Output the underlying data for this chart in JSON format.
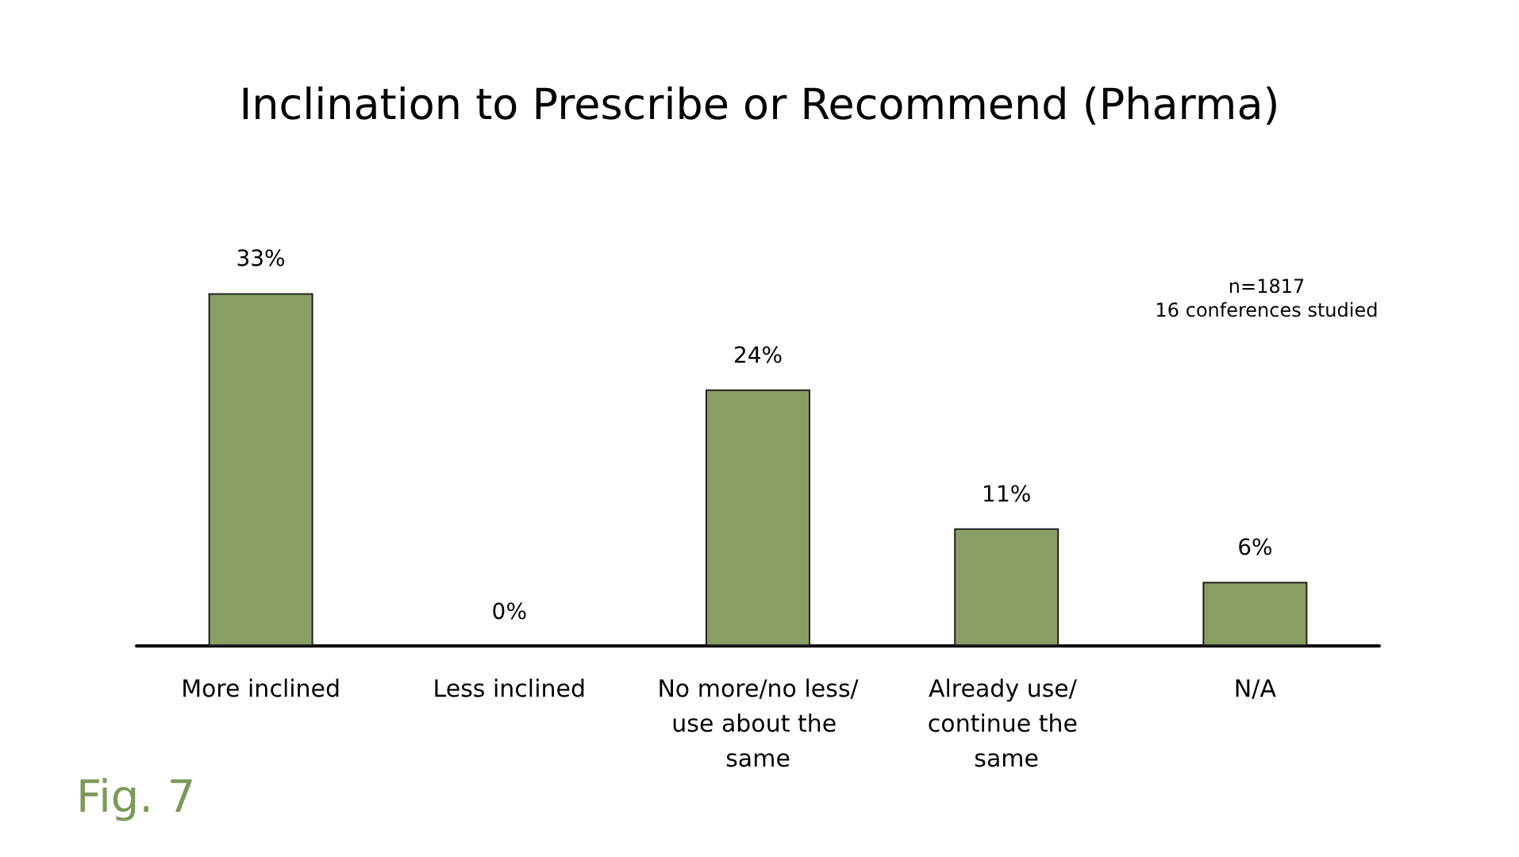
{
  "chart_data": {
    "type": "bar",
    "title": "Inclination to Prescribe or Recommend (Pharma)",
    "categories": [
      "More inclined",
      "Less inclined",
      "No more/no less/use about the same",
      "Already use/ continue the same",
      "N/A"
    ],
    "values": [
      33,
      0,
      24,
      11,
      6
    ],
    "color": "#8a9e64",
    "data_labels": true,
    "value_labels": [
      "33%",
      "0%",
      "24%",
      "11%",
      "6%"
    ],
    "annotations": [
      "n=1817",
      "16 conferences studied",
      "Fig. 7"
    ]
  }
}
